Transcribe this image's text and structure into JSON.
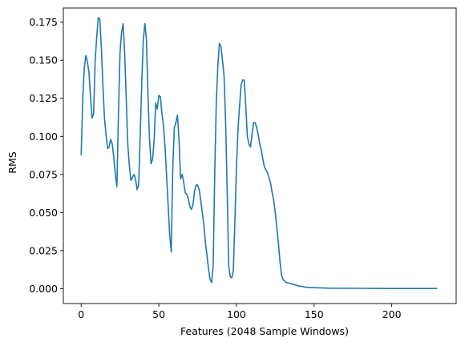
{
  "chart_data": {
    "type": "line",
    "title": "",
    "xlabel": "Features (2048 Sample Windows)",
    "ylabel": "RMS",
    "xlim": [
      -11.5,
      241.5
    ],
    "ylim": [
      -0.0098,
      0.1843
    ],
    "xticks": [
      0,
      50,
      100,
      150,
      200
    ],
    "xtick_labels": [
      "0",
      "50",
      "100",
      "150",
      "200"
    ],
    "yticks": [
      0.0,
      0.025,
      0.05,
      0.075,
      0.1,
      0.125,
      0.15,
      0.175
    ],
    "ytick_labels": [
      "0.000",
      "0.025",
      "0.050",
      "0.075",
      "0.100",
      "0.125",
      "0.150",
      "0.175"
    ],
    "grid": false,
    "legend": "none",
    "colors": {
      "series": "#1f77b4"
    },
    "series": [
      {
        "x": [
          0,
          1,
          2,
          3,
          4,
          5,
          6,
          7,
          8,
          9,
          10,
          11,
          12,
          13,
          14,
          15,
          16,
          17,
          18,
          19,
          20,
          21,
          22,
          23,
          24,
          25,
          26,
          27,
          28,
          29,
          30,
          31,
          32,
          33,
          34,
          35,
          36,
          37,
          38,
          39,
          40,
          41,
          42,
          43,
          44,
          45,
          46,
          47,
          48,
          49,
          50,
          51,
          52,
          53,
          54,
          55,
          56,
          57,
          58,
          59,
          60,
          61,
          62,
          63,
          64,
          65,
          66,
          67,
          68,
          69,
          70,
          71,
          72,
          73,
          74,
          75,
          76,
          77,
          78,
          79,
          80,
          81,
          82,
          83,
          84,
          85,
          86,
          87,
          88,
          89,
          90,
          91,
          92,
          93,
          94,
          95,
          96,
          97,
          98,
          99,
          100,
          101,
          102,
          103,
          104,
          105,
          106,
          107,
          108,
          109,
          110,
          111,
          112,
          113,
          114,
          115,
          116,
          117,
          118,
          119,
          120,
          121,
          122,
          123,
          124,
          125,
          126,
          127,
          128,
          129,
          130,
          131,
          132,
          135,
          140,
          145,
          150,
          160,
          180,
          200,
          229
        ],
        "y": [
          0.088,
          0.125,
          0.145,
          0.153,
          0.149,
          0.142,
          0.126,
          0.112,
          0.115,
          0.15,
          0.165,
          0.178,
          0.177,
          0.158,
          0.133,
          0.112,
          0.101,
          0.092,
          0.093,
          0.098,
          0.095,
          0.086,
          0.075,
          0.067,
          0.115,
          0.155,
          0.168,
          0.174,
          0.155,
          0.125,
          0.095,
          0.081,
          0.071,
          0.073,
          0.075,
          0.072,
          0.065,
          0.068,
          0.1,
          0.135,
          0.163,
          0.174,
          0.164,
          0.128,
          0.098,
          0.082,
          0.085,
          0.098,
          0.122,
          0.118,
          0.127,
          0.126,
          0.115,
          0.107,
          0.093,
          0.074,
          0.055,
          0.035,
          0.024,
          0.08,
          0.106,
          0.109,
          0.114,
          0.098,
          0.072,
          0.075,
          0.07,
          0.063,
          0.062,
          0.059,
          0.054,
          0.052,
          0.055,
          0.064,
          0.068,
          0.068,
          0.065,
          0.058,
          0.05,
          0.042,
          0.03,
          0.022,
          0.013,
          0.006,
          0.004,
          0.015,
          0.075,
          0.122,
          0.146,
          0.161,
          0.159,
          0.15,
          0.14,
          0.11,
          0.065,
          0.015,
          0.008,
          0.007,
          0.012,
          0.045,
          0.08,
          0.105,
          0.12,
          0.134,
          0.137,
          0.137,
          0.12,
          0.1,
          0.095,
          0.093,
          0.101,
          0.109,
          0.109,
          0.106,
          0.101,
          0.095,
          0.091,
          0.085,
          0.08,
          0.078,
          0.076,
          0.073,
          0.069,
          0.063,
          0.058,
          0.05,
          0.04,
          0.03,
          0.018,
          0.009,
          0.006,
          0.005,
          0.004,
          0.0033,
          0.0018,
          0.0009,
          0.0006,
          0.0003,
          0.0002,
          0.0001,
          0.0001
        ]
      }
    ]
  }
}
